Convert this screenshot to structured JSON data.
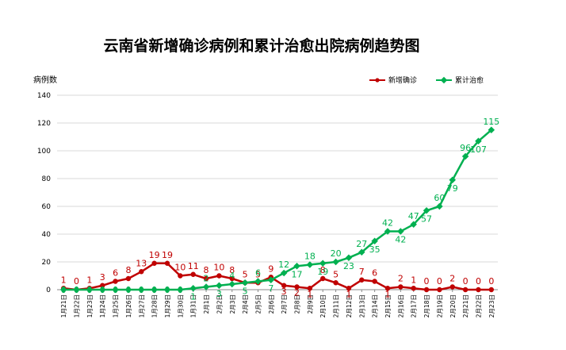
{
  "chart_data": {
    "type": "line",
    "title": "云南省新增确诊病例和累计治愈出院病例趋势图",
    "ylabel": "病例数",
    "xlabel": "",
    "ylim": [
      0,
      140
    ],
    "yticks": [
      0,
      20,
      40,
      60,
      80,
      100,
      120,
      140
    ],
    "grid": true,
    "legend_position": "top-right",
    "categories": [
      "1月21日",
      "1月22日",
      "1月23日",
      "1月24日",
      "1月25日",
      "1月26日",
      "1月27日",
      "1月28日",
      "1月29日",
      "1月30日",
      "1月31日",
      "2月1日",
      "2月2日",
      "2月3日",
      "2月4日",
      "2月5日",
      "2月6日",
      "2月7日",
      "2月8日",
      "2月9日",
      "2月10日",
      "2月11日",
      "2月12日",
      "2月13日",
      "2月14日",
      "2月15日",
      "2月16日",
      "2月17日",
      "2月18日",
      "2月19日",
      "2月20日",
      "2月21日",
      "2月22日",
      "2月23日"
    ],
    "series": [
      {
        "name": "新增确诊",
        "color": "#c00000",
        "values": [
          1,
          0,
          1,
          3,
          6,
          8,
          13,
          19,
          19,
          10,
          11,
          8,
          10,
          8,
          5,
          5,
          9,
          3,
          2,
          1,
          8,
          5,
          1,
          7,
          6,
          1,
          2,
          1,
          0,
          0,
          2,
          0,
          0,
          0
        ],
        "labels": [
          "1",
          "0",
          "1",
          "3",
          "6",
          "8",
          "13",
          "19",
          "19",
          "10",
          "11",
          "8",
          "10",
          "8",
          "5",
          "5",
          "9",
          "3",
          "2",
          "1",
          "8",
          "5",
          "1",
          "7",
          "6",
          "1",
          "2",
          "1",
          "0",
          "0",
          "2",
          "0",
          "0",
          "0"
        ]
      },
      {
        "name": "累计治愈",
        "color": "#00b050",
        "values": [
          0,
          0,
          0,
          0,
          0,
          0,
          0,
          0,
          0,
          0,
          1,
          2,
          3,
          4,
          5,
          6,
          7,
          12,
          17,
          18,
          19,
          20,
          23,
          27,
          35,
          42,
          42,
          47,
          57,
          60,
          79,
          96,
          107,
          115
        ],
        "labels": [
          "0",
          "0",
          "0",
          "0",
          "0",
          "0",
          "0",
          "0",
          "0",
          "0",
          "1",
          "2",
          "3",
          "4",
          "5",
          "6",
          "7",
          "12",
          "17",
          "18",
          "19",
          "20",
          "23",
          "27",
          "35",
          "42",
          "42",
          "47",
          "57",
          "60",
          "79",
          "96",
          "107",
          "115"
        ]
      }
    ]
  }
}
